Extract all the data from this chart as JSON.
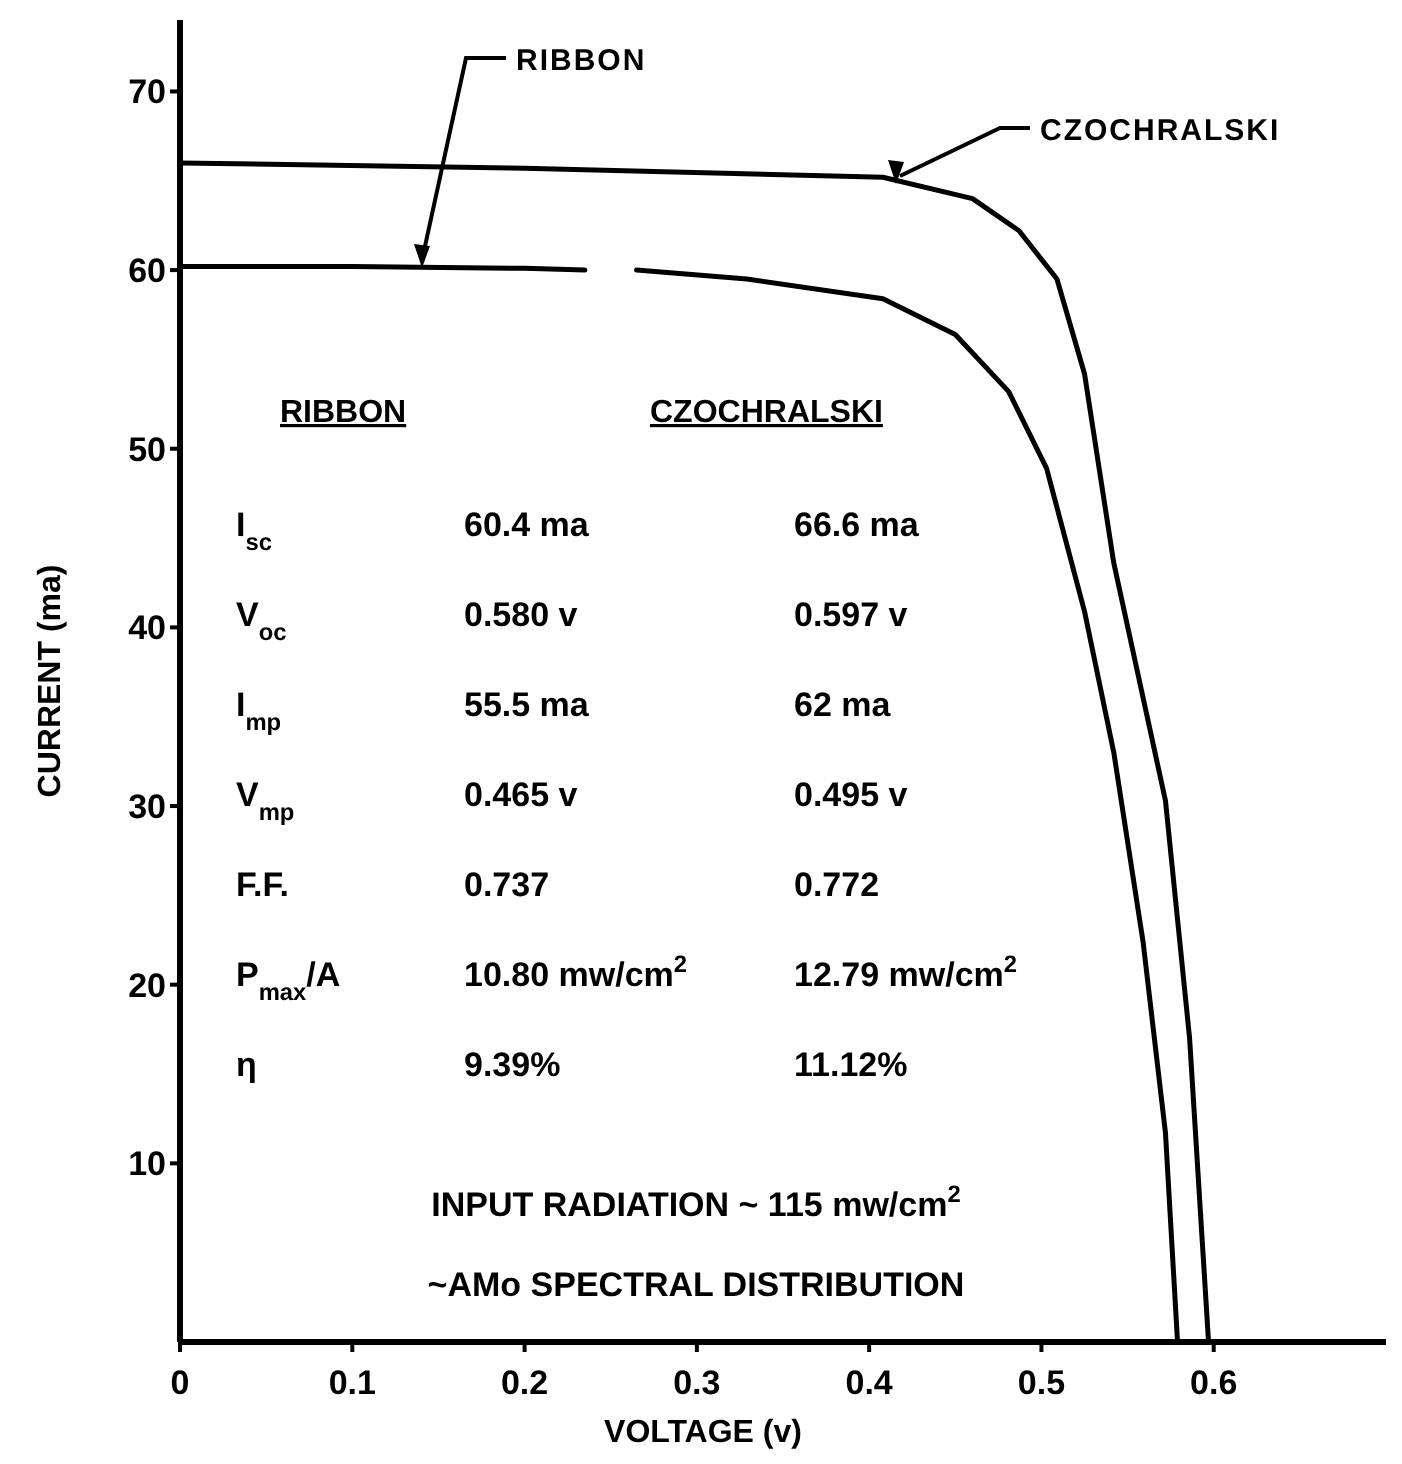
{
  "chart_data": {
    "type": "line",
    "xlabel": "VOLTAGE (v)",
    "ylabel": "CURRENT (ma)",
    "xlim": [
      0,
      0.7
    ],
    "ylim": [
      0,
      74
    ],
    "xticks": [
      0,
      0.1,
      0.2,
      0.3,
      0.4,
      0.5,
      0.6
    ],
    "yticks": [
      10,
      20,
      30,
      40,
      50,
      60,
      70
    ],
    "marker": "none",
    "line_style": "solid",
    "grid": false,
    "series": [
      {
        "name": "RIBBON",
        "color": "#000000",
        "x": [
          0,
          0.1,
          0.2,
          0.235,
          0.25,
          0.265,
          0.329,
          0.408,
          0.45,
          0.481,
          0.503,
          0.525,
          0.542,
          0.559,
          0.572,
          0.579
        ],
        "values": [
          60.2,
          60.2,
          60.1,
          60.0,
          null,
          60.0,
          59.5,
          58.4,
          56.4,
          53.2,
          48.9,
          40.9,
          33,
          22.4,
          11.7,
          0
        ]
      },
      {
        "name": "CZOCHRALSKI",
        "color": "#000000",
        "x": [
          0,
          0.2,
          0.408,
          0.46,
          0.487,
          0.509,
          0.525,
          0.542,
          0.572,
          0.586,
          0.597
        ],
        "values": [
          66,
          65.7,
          65.2,
          64,
          62.2,
          59.5,
          54.2,
          43.6,
          30.3,
          17,
          0
        ]
      }
    ],
    "annotations": [
      "RIBBON",
      "CZOCHRALSKI",
      "I$_{sc}$",
      "60.4 ma",
      "66.6 ma",
      "V$_{oc}$",
      "0.580  v",
      "0.597  v",
      "I$_{mp}$",
      "55.5 ma",
      "62 ma",
      "V$_{mp}$",
      "0.465  v",
      "0.495  v",
      "F.F.",
      "0.737",
      "0.772",
      "P$_{max}$/A",
      "10.80 mw/cm$^{2}$",
      "12.79 mw/cm$^{2}$",
      "η",
      "9.39%",
      "11.12%",
      "INPUT RADIATION ~ 115 mw/cm$^{2}$",
      "~AMo SPECTRAL  DISTRIBUTION"
    ]
  }
}
